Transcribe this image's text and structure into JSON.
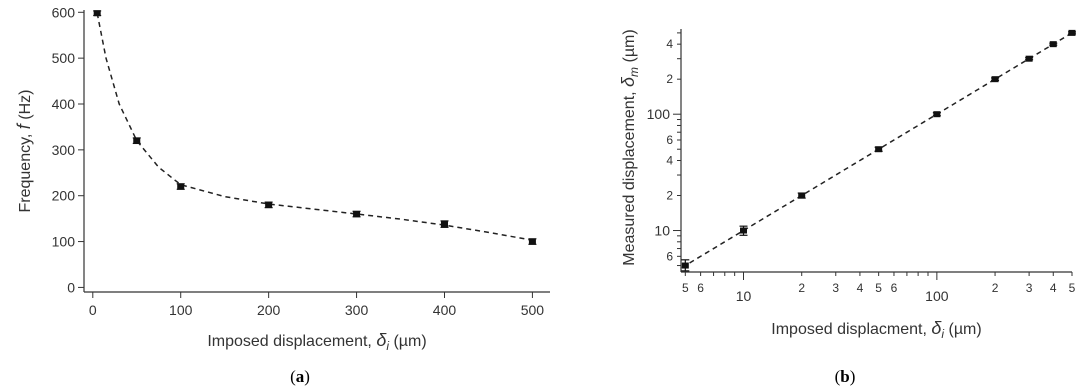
{
  "chart_data": [
    {
      "type": "scatter",
      "panel_label": {
        "open": "(",
        "letter": "a",
        "close": ")"
      },
      "xlabel": {
        "text": "Imposed displacement, ",
        "symbol": "δ",
        "sub": "i",
        "unit": " (µm)"
      },
      "ylabel": {
        "text": "Frequency, ",
        "symbol": "f",
        "unit": " (Hz)"
      },
      "xlim": [
        -10,
        520
      ],
      "ylim": [
        -10,
        605
      ],
      "xticks": [
        0,
        100,
        200,
        300,
        400,
        500
      ],
      "yticks": [
        0,
        100,
        200,
        300,
        400,
        500,
        600
      ],
      "grid": false,
      "fit_line": "dashed",
      "series": [
        {
          "points": [
            {
              "x": 5,
              "y": 598,
              "err": 5
            },
            {
              "x": 50,
              "y": 320,
              "err": 6
            },
            {
              "x": 100,
              "y": 220,
              "err": 6
            },
            {
              "x": 200,
              "y": 180,
              "err": 6
            },
            {
              "x": 300,
              "y": 160,
              "err": 6
            },
            {
              "x": 400,
              "y": 138,
              "err": 7
            },
            {
              "x": 500,
              "y": 100,
              "err": 6
            }
          ]
        }
      ],
      "fit": [
        [
          5,
          598
        ],
        [
          15,
          500
        ],
        [
          30,
          400
        ],
        [
          50,
          320
        ],
        [
          75,
          262
        ],
        [
          100,
          224
        ],
        [
          150,
          198
        ],
        [
          200,
          182
        ],
        [
          250,
          171
        ],
        [
          300,
          160
        ],
        [
          350,
          149
        ],
        [
          400,
          136
        ],
        [
          450,
          120
        ],
        [
          500,
          103
        ]
      ]
    },
    {
      "type": "scatter",
      "panel_label": {
        "open": "(",
        "letter": "b",
        "close": ")"
      },
      "xlabel": {
        "text": "Imposed displacment, ",
        "symbol": "δ",
        "sub": "i",
        "unit": " (µm)"
      },
      "ylabel": {
        "text": "Measured displacement, ",
        "symbol": "δ",
        "sub": "m",
        "unit": " (µm)"
      },
      "xscale": "log",
      "yscale": "log",
      "xlim": [
        4.75,
        500
      ],
      "ylim": [
        4.4,
        540
      ],
      "x_major_ticks": [
        10,
        100
      ],
      "x_major_labels": [
        "10",
        "100"
      ],
      "x_minor_ticks": [
        5,
        6,
        20,
        30,
        40,
        50,
        60,
        200,
        300,
        400,
        500
      ],
      "x_minor_labels": [
        "5",
        "6",
        "2",
        "3",
        "4",
        "5",
        "6",
        "2",
        "3",
        "4",
        "5"
      ],
      "y_major_ticks": [
        10,
        100
      ],
      "y_major_labels": [
        "10",
        "100"
      ],
      "y_minor_ticks": [
        6,
        20,
        40,
        60,
        200,
        400
      ],
      "y_minor_labels": [
        "6",
        "2",
        "4",
        "6",
        "2",
        "4"
      ],
      "grid": false,
      "fit_line": "dashed",
      "series": [
        {
          "points": [
            {
              "x": 5,
              "y": 5,
              "err_lo": 0.5,
              "err_hi": 0.6
            },
            {
              "x": 10,
              "y": 10,
              "err_lo": 0.9,
              "err_hi": 0.9
            },
            {
              "x": 20,
              "y": 20,
              "err_lo": 1,
              "err_hi": 1
            },
            {
              "x": 50,
              "y": 50,
              "err_lo": 2,
              "err_hi": 2
            },
            {
              "x": 100,
              "y": 100,
              "err_lo": 3,
              "err_hi": 3
            },
            {
              "x": 200,
              "y": 200,
              "err_lo": 5,
              "err_hi": 5
            },
            {
              "x": 300,
              "y": 300,
              "err_lo": 6,
              "err_hi": 6
            },
            {
              "x": 400,
              "y": 400,
              "err_lo": 8,
              "err_hi": 8
            },
            {
              "x": 500,
              "y": 500,
              "err_lo": 10,
              "err_hi": 10
            }
          ]
        }
      ],
      "fit": [
        [
          4.8,
          4.8
        ],
        [
          500,
          500
        ]
      ]
    }
  ]
}
